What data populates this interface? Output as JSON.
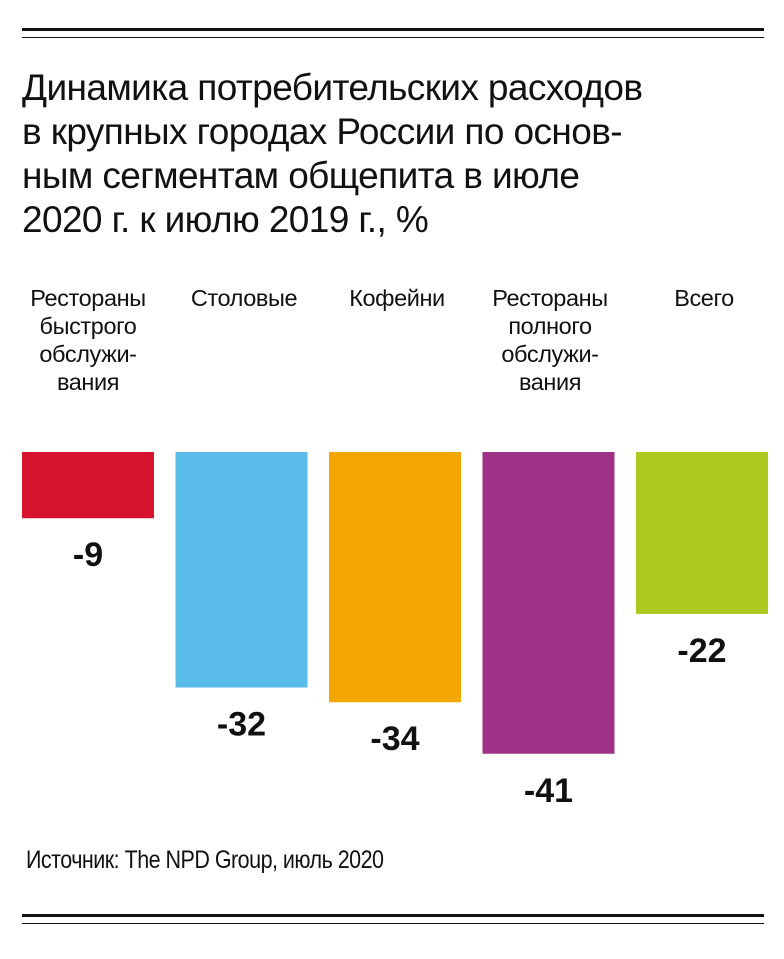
{
  "chart_data": {
    "type": "bar",
    "title": "Динамика потребительских расходов\nв крупных городах России по основ-\nным сегментам общепита в июле\n2020 г. к июлю 2019 г., %",
    "categories": [
      "Рестораны\nбыстрого\nобслужи-\nвания",
      "Столовые",
      "Кофейни",
      "Рестораны\nполного\nобслужи-\nвания",
      "Всего"
    ],
    "values": [
      -9,
      -32,
      -34,
      -41,
      -22
    ],
    "value_labels": [
      "-9",
      "-32",
      "-34",
      "-41",
      "-22"
    ],
    "colors": [
      "#d7132d",
      "#5abde9",
      "#f4a600",
      "#9e3287",
      "#adc820"
    ],
    "xlabel": "",
    "ylabel": "",
    "ylim": [
      -41,
      0
    ],
    "grid": false,
    "legend": "none"
  },
  "source": "Источник: The NPD Group, июль 2020"
}
